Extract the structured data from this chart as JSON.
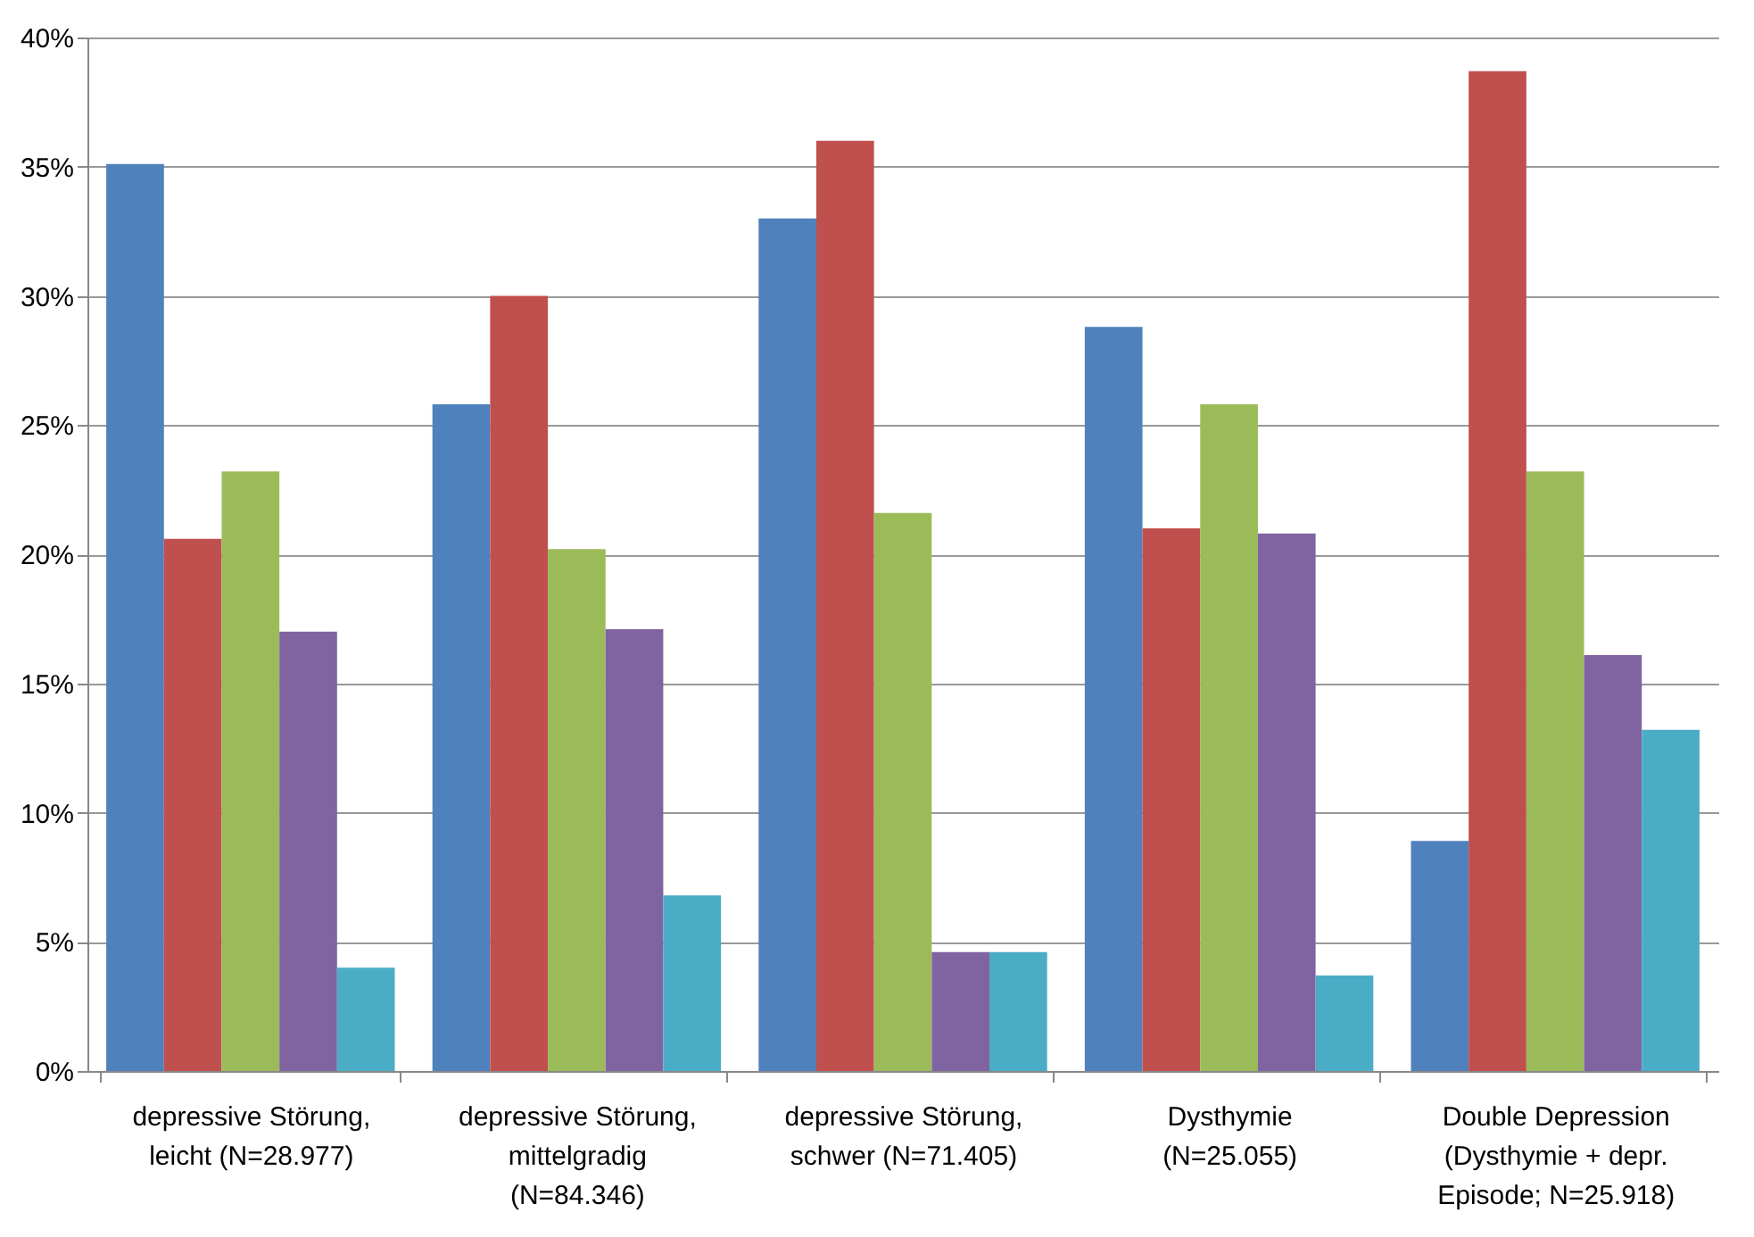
{
  "chart_data": {
    "type": "bar",
    "categories": [
      "depressive Störung,\nleicht (N=28.977)",
      "depressive Störung,\nmittelgradig\n(N=84.346)",
      "depressive Störung,\nschwer (N=71.405)",
      "Dysthymie\n(N=25.055)",
      "Double Depression\n(Dysthymie + depr.\nEpisode; N=25.918)"
    ],
    "series": [
      {
        "color": "#4f81bd",
        "values": [
          35.1,
          25.8,
          33.0,
          28.8,
          8.9
        ]
      },
      {
        "color": "#c0504d",
        "values": [
          20.6,
          30.0,
          36.0,
          21.0,
          38.7
        ]
      },
      {
        "color": "#9bbb59",
        "values": [
          23.2,
          20.2,
          21.6,
          25.8,
          23.2
        ]
      },
      {
        "color": "#8064a2",
        "values": [
          17.0,
          17.1,
          4.6,
          20.8,
          16.1
        ]
      },
      {
        "color": "#4bacc6",
        "values": [
          4.0,
          6.8,
          4.6,
          3.7,
          13.2
        ]
      }
    ],
    "ylim": [
      0,
      40
    ],
    "yticks": [
      {
        "value": 0,
        "label": "0%"
      },
      {
        "value": 5,
        "label": "5%"
      },
      {
        "value": 10,
        "label": "10%"
      },
      {
        "value": 15,
        "label": "15%"
      },
      {
        "value": 20,
        "label": "20%"
      },
      {
        "value": 25,
        "label": "25%"
      },
      {
        "value": 30,
        "label": "30%"
      },
      {
        "value": 35,
        "label": "35%"
      },
      {
        "value": 40,
        "label": "40%"
      }
    ],
    "grid": "y",
    "legend": false
  }
}
